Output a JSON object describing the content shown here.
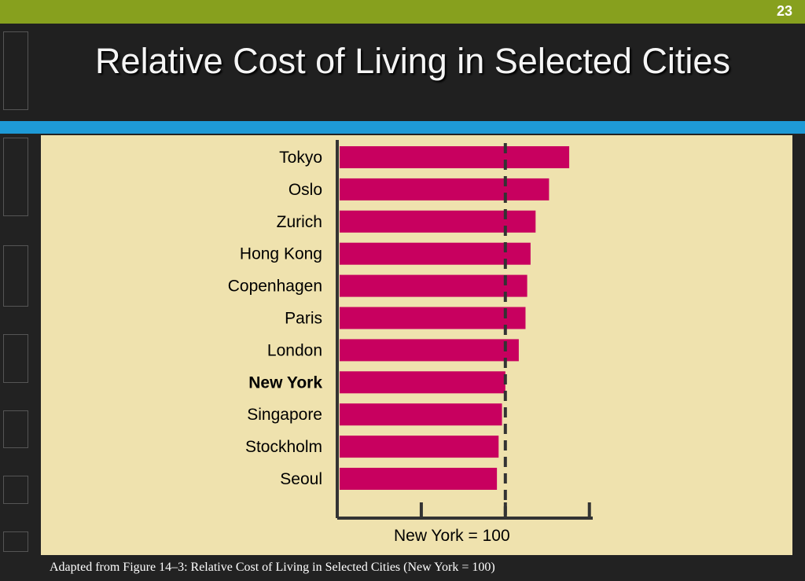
{
  "slide": {
    "number": "23",
    "title": "Relative Cost of Living in Selected Cities",
    "caption": "Adapted from Figure 14–3: Relative Cost of Living in Selected Cities (New York  = 100)"
  },
  "colors": {
    "bar": "#c8005f",
    "panel": "#efe2ae",
    "axis": "#333333",
    "reference_line": "#333333"
  },
  "chart_data": {
    "type": "bar",
    "orientation": "horizontal",
    "categories": [
      "Tokyo",
      "Oslo",
      "Zurich",
      "Hong Kong",
      "Copenhagen",
      "Paris",
      "London",
      "New York",
      "Singapore",
      "Stockholm",
      "Seoul"
    ],
    "values": [
      138,
      126,
      118,
      115,
      113,
      112,
      108,
      100,
      98,
      96,
      95
    ],
    "highlight_category": "New York",
    "reference_value": 100,
    "reference_label": "New York = 100",
    "xlim": [
      0,
      152
    ],
    "xticks": [
      50,
      100,
      150
    ],
    "grid": false
  }
}
